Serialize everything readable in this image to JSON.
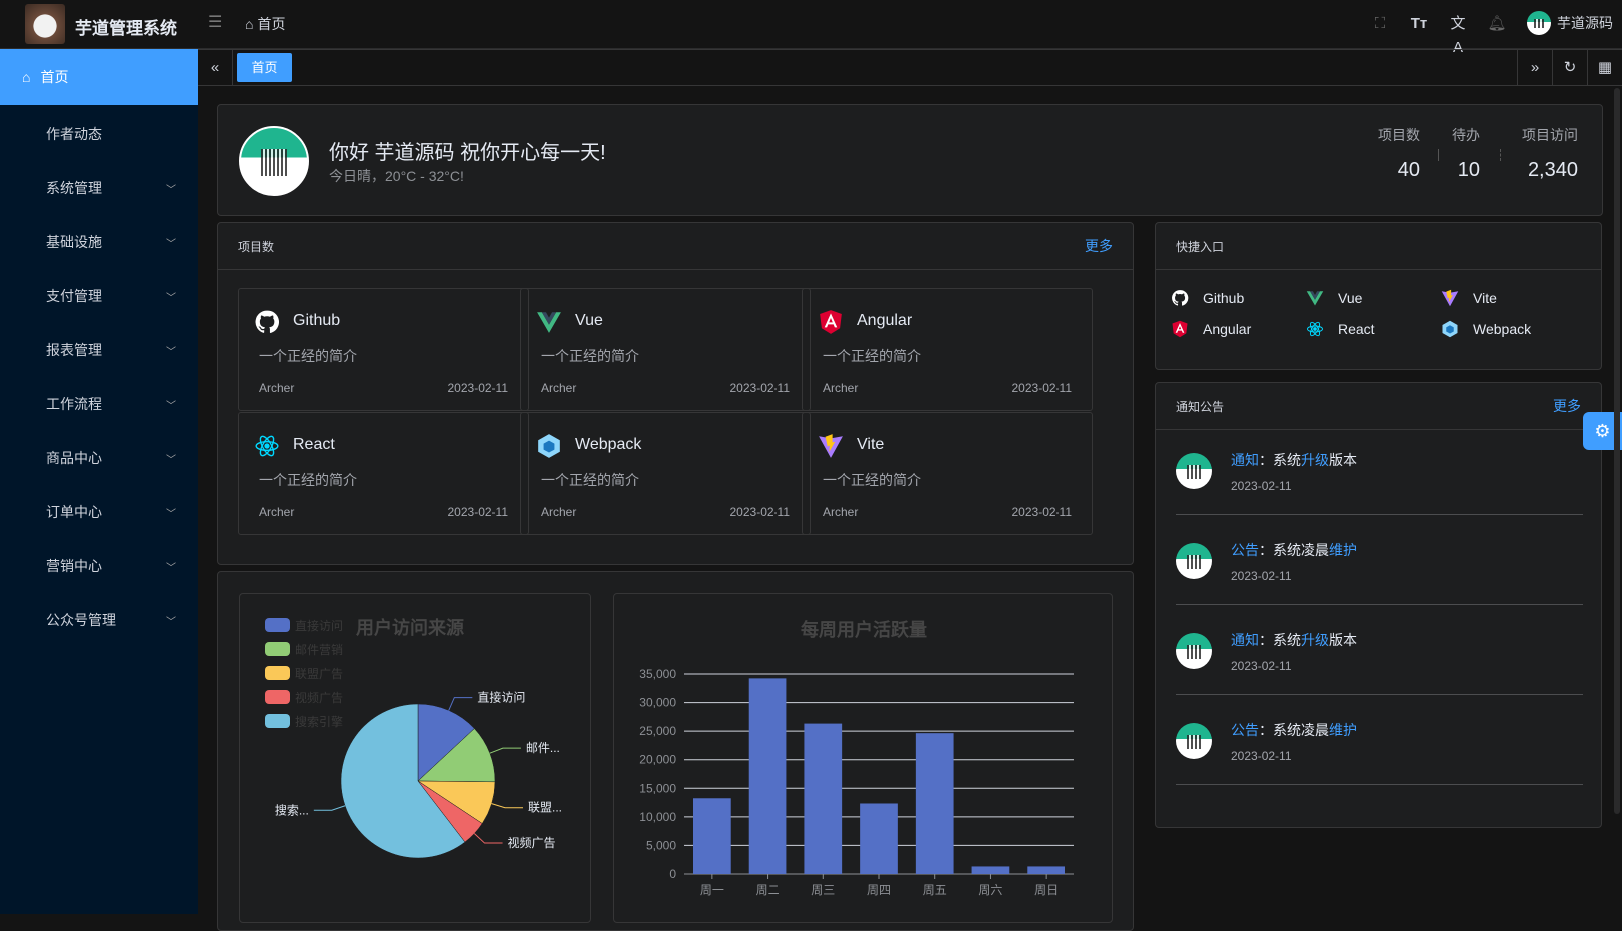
{
  "header": {
    "app_title": "芋道管理系统",
    "breadcrumb": "首页",
    "user_name": "芋道源码",
    "icons": [
      "fullscreen-icon",
      "font-size-icon",
      "translate-icon",
      "bell-icon"
    ]
  },
  "sidebar": {
    "items": [
      {
        "label": "首页",
        "active": true
      },
      {
        "label": "作者动态"
      },
      {
        "label": "系统管理",
        "expandable": true
      },
      {
        "label": "基础设施",
        "expandable": true
      },
      {
        "label": "支付管理",
        "expandable": true
      },
      {
        "label": "报表管理",
        "expandable": true
      },
      {
        "label": "工作流程",
        "expandable": true
      },
      {
        "label": "商品中心",
        "expandable": true
      },
      {
        "label": "订单中心",
        "expandable": true
      },
      {
        "label": "营销中心",
        "expandable": true
      },
      {
        "label": "公众号管理",
        "expandable": true
      }
    ]
  },
  "tabs": {
    "items": [
      {
        "label": "首页",
        "active": true
      }
    ]
  },
  "welcome": {
    "greeting": "你好 芋道源码 祝你开心每一天!",
    "weather": "今日晴，20°C - 32°C!",
    "stats": [
      {
        "label": "项目数",
        "value": "40"
      },
      {
        "label": "待办",
        "value": "10"
      },
      {
        "label": "项目访问",
        "value": "2,340"
      }
    ]
  },
  "projects": {
    "title": "项目数",
    "more": "更多",
    "items": [
      {
        "name": "Github",
        "icon": "github",
        "desc": "一个正经的简介",
        "author": "Archer",
        "date": "2023-02-11"
      },
      {
        "name": "Vue",
        "icon": "vue",
        "desc": "一个正经的简介",
        "author": "Archer",
        "date": "2023-02-11"
      },
      {
        "name": "Angular",
        "icon": "angular",
        "desc": "一个正经的简介",
        "author": "Archer",
        "date": "2023-02-11"
      },
      {
        "name": "React",
        "icon": "react",
        "desc": "一个正经的简介",
        "author": "Archer",
        "date": "2023-02-11"
      },
      {
        "name": "Webpack",
        "icon": "webpack",
        "desc": "一个正经的简介",
        "author": "Archer",
        "date": "2023-02-11"
      },
      {
        "name": "Vite",
        "icon": "vite",
        "desc": "一个正经的简介",
        "author": "Archer",
        "date": "2023-02-11"
      }
    ]
  },
  "shortcuts": {
    "title": "快捷入口",
    "items": [
      {
        "name": "Github",
        "icon": "github"
      },
      {
        "name": "Vue",
        "icon": "vue"
      },
      {
        "name": "Vite",
        "icon": "vite"
      },
      {
        "name": "Angular",
        "icon": "angular"
      },
      {
        "name": "React",
        "icon": "react"
      },
      {
        "name": "Webpack",
        "icon": "webpack"
      }
    ]
  },
  "notices": {
    "title": "通知公告",
    "more": "更多",
    "items": [
      {
        "type": "通知",
        "sep": "：",
        "pre": "系统",
        "key": "升级",
        "post": "版本",
        "date": "2023-02-11"
      },
      {
        "type": "公告",
        "sep": "：",
        "pre": "系统凌晨",
        "key": "维护",
        "post": "",
        "date": "2023-02-11"
      },
      {
        "type": "通知",
        "sep": "：",
        "pre": "系统",
        "key": "升级",
        "post": "版本",
        "date": "2023-02-11"
      },
      {
        "type": "公告",
        "sep": "：",
        "pre": "系统凌晨",
        "key": "维护",
        "post": "",
        "date": "2023-02-11"
      }
    ]
  },
  "colors": {
    "accent": "#409eff",
    "sidebar_bg": "#001529",
    "card_bg": "#1d1e1f"
  },
  "chart_data": [
    {
      "type": "pie",
      "title": "用户访问来源",
      "legend_position": "top-left",
      "categories": [
        "直接访问",
        "邮件营销",
        "联盟广告",
        "视频广告",
        "搜索引擎"
      ],
      "values": [
        335,
        310,
        234,
        135,
        1548
      ],
      "slice_labels": [
        "直接访问",
        "邮件...",
        "联盟...",
        "视频广告",
        "搜索..."
      ],
      "colors": [
        "#5470c6",
        "#91cc75",
        "#fac858",
        "#ee6666",
        "#73c0de"
      ]
    },
    {
      "type": "bar",
      "title": "每周用户活跃量",
      "categories": [
        "周一",
        "周二",
        "周三",
        "周四",
        "周五",
        "周六",
        "周日"
      ],
      "values": [
        13253,
        34235,
        26321,
        12340,
        24643,
        1322,
        1324
      ],
      "ylim": [
        0,
        35000
      ],
      "yticks": [
        "0",
        "5,000",
        "10,000",
        "15,000",
        "20,000",
        "25,000",
        "30,000",
        "35,000"
      ],
      "grid": true,
      "color": "#5470c6"
    }
  ]
}
